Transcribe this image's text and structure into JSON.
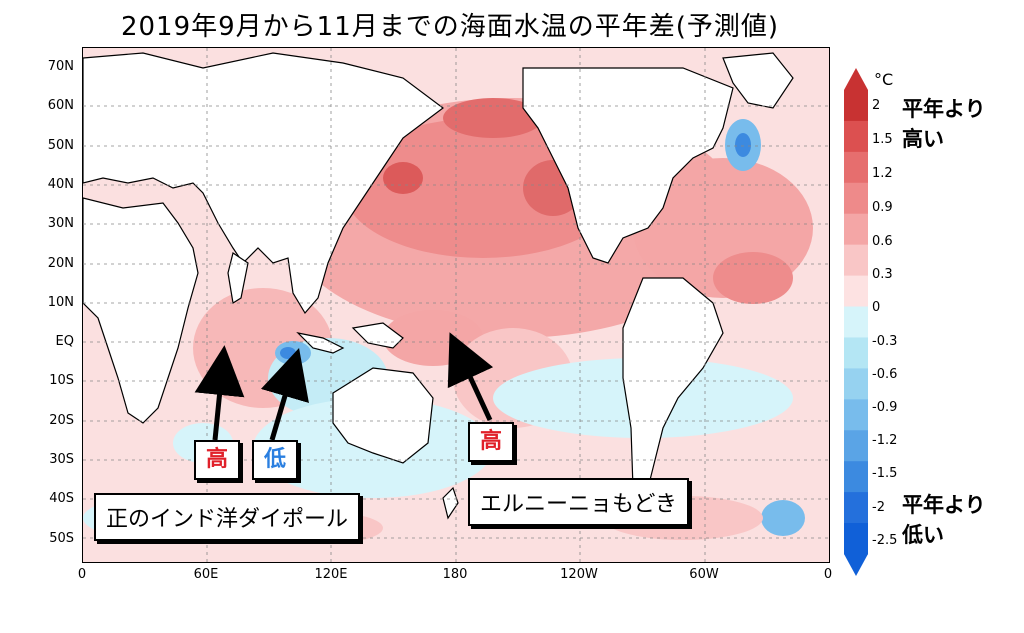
{
  "title": "2019年9月から11月までの海面水温の平年差(予測値)",
  "axes": {
    "y_labels": [
      "70N",
      "60N",
      "50N",
      "40N",
      "30N",
      "20N",
      "10N",
      "EQ",
      "10S",
      "20S",
      "30S",
      "40S",
      "50S"
    ],
    "x_labels": [
      "0",
      "60E",
      "120E",
      "180",
      "120W",
      "60W",
      "0"
    ]
  },
  "legend": {
    "unit": "°C",
    "ticks": [
      "2",
      "1.5",
      "1.2",
      "0.9",
      "0.6",
      "0.3",
      "0",
      "-0.3",
      "-0.6",
      "-0.9",
      "-1.2",
      "-1.5",
      "-2",
      "-2.5"
    ],
    "colors": [
      "#c83232",
      "#dc5050",
      "#e66e6e",
      "#ee8a8a",
      "#f4a6a6",
      "#f9c6c6",
      "#fde2e2",
      "#d6f4fa",
      "#b4e6f4",
      "#96d2f0",
      "#78bcec",
      "#5aa4e6",
      "#3c8ae0",
      "#2470dc",
      "#1060d8"
    ],
    "high_note": [
      "平年より",
      "高い"
    ],
    "low_note": [
      "平年より",
      "低い"
    ]
  },
  "annotations": {
    "indian_high": "高",
    "indian_low": "低",
    "pacific_high": "高",
    "iod_label": "正のインド洋ダイポール",
    "enso_label": "エルニーニョもどき"
  }
}
